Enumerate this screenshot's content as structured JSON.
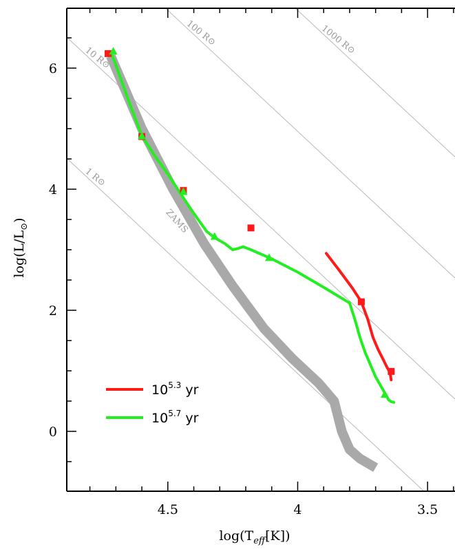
{
  "chart_data": {
    "type": "line",
    "xlabel": "log(T_eff[K])",
    "ylabel": "log(L/L⊙)",
    "xlim": [
      4.9,
      3.4
    ],
    "ylim": [
      -1.0,
      7.0
    ],
    "x_ticks": [
      {
        "v": 4.5,
        "label": "4.5"
      },
      {
        "v": 4.0,
        "label": "4"
      },
      {
        "v": 3.5,
        "label": "3.5"
      }
    ],
    "y_ticks": [
      {
        "v": 0,
        "label": "0"
      },
      {
        "v": 2,
        "label": "2"
      },
      {
        "v": 4,
        "label": "4"
      },
      {
        "v": 6,
        "label": "6"
      }
    ],
    "x_reversed": true,
    "grid": false,
    "radius_lines": [
      {
        "label": "1 R⊙",
        "R": 1
      },
      {
        "label": "10 R⊙",
        "R": 10
      },
      {
        "label": "100 R⊙",
        "R": 100
      },
      {
        "label": "1000 R⊙",
        "R": 1000
      }
    ],
    "zams": {
      "label": "ZAMS",
      "color": "#a9a9a9",
      "x": [
        4.72,
        4.6,
        4.48,
        4.36,
        4.25,
        4.13,
        4.02,
        3.92,
        3.86,
        3.83,
        3.8,
        3.76,
        3.72,
        3.7
      ],
      "y": [
        6.2,
        5.0,
        4.0,
        3.1,
        2.4,
        1.7,
        1.2,
        0.8,
        0.5,
        0.0,
        -0.3,
        -0.45,
        -0.55,
        -0.6
      ]
    },
    "series": [
      {
        "name": "10^5.3 yr",
        "label_base": "10",
        "label_exp": "5.3",
        "label_unit": " yr",
        "color": "#ff1a1a",
        "x": [
          3.89,
          3.84,
          3.79,
          3.755,
          3.73,
          3.71,
          3.69,
          3.67,
          3.655,
          3.645,
          3.64
        ],
        "y": [
          2.94,
          2.66,
          2.37,
          2.14,
          1.85,
          1.55,
          1.35,
          1.18,
          1.05,
          0.98,
          0.85
        ],
        "markers": {
          "shape": "square",
          "x": [
            4.73,
            4.6,
            4.44,
            4.18,
            3.755,
            3.64
          ],
          "y": [
            6.24,
            4.87,
            3.98,
            3.36,
            2.14,
            0.99
          ]
        }
      },
      {
        "name": "10^5.7 yr",
        "label_base": "10",
        "label_exp": "5.7",
        "label_unit": " yr",
        "color": "#22ee22",
        "x": [
          4.72,
          4.7,
          4.65,
          4.6,
          4.55,
          4.5,
          4.45,
          4.4,
          4.35,
          4.32,
          4.28,
          4.25,
          4.23,
          4.21,
          4.18,
          4.1,
          4.0,
          3.9,
          3.8,
          3.78,
          3.76,
          3.74,
          3.72,
          3.7,
          3.68,
          3.66,
          3.65,
          3.64,
          3.63
        ],
        "y": [
          6.27,
          6.05,
          5.45,
          4.88,
          4.55,
          4.25,
          3.92,
          3.6,
          3.3,
          3.2,
          3.1,
          3.0,
          3.02,
          3.05,
          3.0,
          2.85,
          2.63,
          2.38,
          2.12,
          1.85,
          1.55,
          1.3,
          1.1,
          0.9,
          0.75,
          0.6,
          0.52,
          0.49,
          0.48
        ],
        "markers": {
          "shape": "triangle",
          "x": [
            4.71,
            4.6,
            4.44,
            4.32,
            4.11,
            3.665
          ],
          "y": [
            6.27,
            4.87,
            3.95,
            3.21,
            2.86,
            0.6
          ]
        }
      }
    ],
    "legend_position": "bottom-left"
  }
}
